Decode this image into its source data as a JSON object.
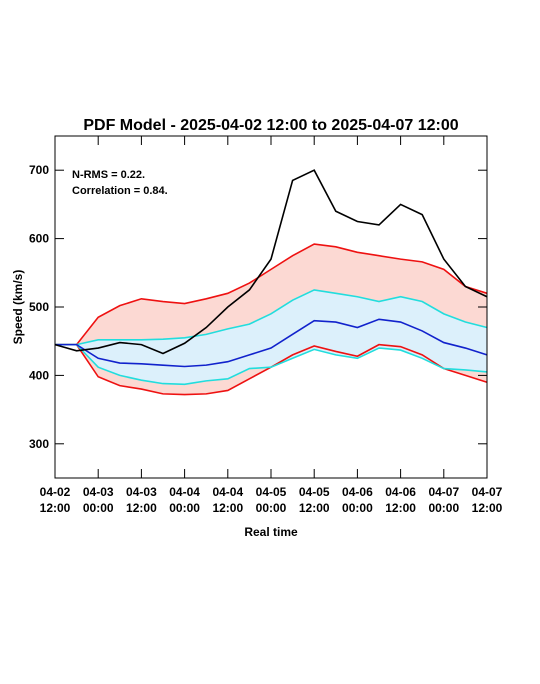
{
  "chart_data": {
    "type": "line",
    "title": "PDF Model - 2025-04-02 12:00 to 2025-04-07 12:00",
    "annotations": [
      "N-RMS = 0.22.",
      "Correlation = 0.84."
    ],
    "y_label": "Speed (km/s)",
    "x_label": "Real time",
    "x": [
      "2025-04-02T12:00",
      "2025-04-02T18:00",
      "2025-04-03T00:00",
      "2025-04-03T06:00",
      "2025-04-03T12:00",
      "2025-04-03T18:00",
      "2025-04-04T00:00",
      "2025-04-04T06:00",
      "2025-04-04T12:00",
      "2025-04-04T18:00",
      "2025-04-05T00:00",
      "2025-04-05T06:00",
      "2025-04-05T12:00",
      "2025-04-05T18:00",
      "2025-04-06T00:00",
      "2025-04-06T06:00",
      "2025-04-06T12:00",
      "2025-04-06T18:00",
      "2025-04-07T00:00",
      "2025-04-07T06:00",
      "2025-04-07T12:00"
    ],
    "bands": [
      {
        "fill": "#fcd9d3",
        "color": "#ee1111",
        "upper": [
          445,
          445,
          485,
          502,
          512,
          508,
          505,
          512,
          520,
          535,
          555,
          575,
          592,
          588,
          580,
          575,
          570,
          566,
          555,
          530,
          520
        ],
        "lower": [
          445,
          445,
          398,
          385,
          380,
          373,
          372,
          373,
          378,
          395,
          412,
          430,
          443,
          435,
          428,
          445,
          442,
          430,
          410,
          400,
          390
        ]
      },
      {
        "fill": "#dcf0fb",
        "color": "#22dddd",
        "upper": [
          445,
          445,
          452,
          452,
          452,
          453,
          455,
          460,
          468,
          475,
          490,
          510,
          525,
          520,
          515,
          508,
          515,
          508,
          490,
          478,
          470
        ],
        "lower": [
          445,
          445,
          412,
          400,
          393,
          388,
          387,
          392,
          395,
          410,
          412,
          425,
          438,
          430,
          425,
          440,
          437,
          425,
          410,
          408,
          405
        ]
      }
    ],
    "series": [
      {
        "color": "#1122cc",
        "values": [
          445,
          445,
          425,
          418,
          417,
          415,
          413,
          415,
          420,
          430,
          440,
          460,
          480,
          478,
          470,
          482,
          478,
          465,
          448,
          440,
          430
        ]
      },
      {
        "color": "#000000",
        "values": [
          445,
          436,
          440,
          448,
          445,
          432,
          447,
          470,
          500,
          525,
          570,
          685,
          700,
          640,
          625,
          620,
          650,
          635,
          570,
          530,
          515
        ]
      }
    ],
    "xlim": [
      "2025-04-02T12:00",
      "2025-04-07T12:00"
    ],
    "xticks": [
      {
        "value": "2025-04-02T12:00",
        "label": "04-02\n12:00"
      },
      {
        "value": "2025-04-03T00:00",
        "label": "04-03\n00:00"
      },
      {
        "value": "2025-04-03T12:00",
        "label": "04-03\n12:00"
      },
      {
        "value": "2025-04-04T00:00",
        "label": "04-04\n00:00"
      },
      {
        "value": "2025-04-04T12:00",
        "label": "04-04\n12:00"
      },
      {
        "value": "2025-04-05T00:00",
        "label": "04-05\n00:00"
      },
      {
        "value": "2025-04-05T12:00",
        "label": "04-05\n12:00"
      },
      {
        "value": "2025-04-06T00:00",
        "label": "04-06\n00:00"
      },
      {
        "value": "2025-04-06T12:00",
        "label": "04-06\n12:00"
      },
      {
        "value": "2025-04-07T00:00",
        "label": "04-07\n00:00"
      },
      {
        "value": "2025-04-07T12:00",
        "label": "04-07\n12:00"
      }
    ],
    "ylim": [
      250,
      750
    ],
    "yticks": [
      300,
      400,
      500,
      600,
      700
    ]
  }
}
